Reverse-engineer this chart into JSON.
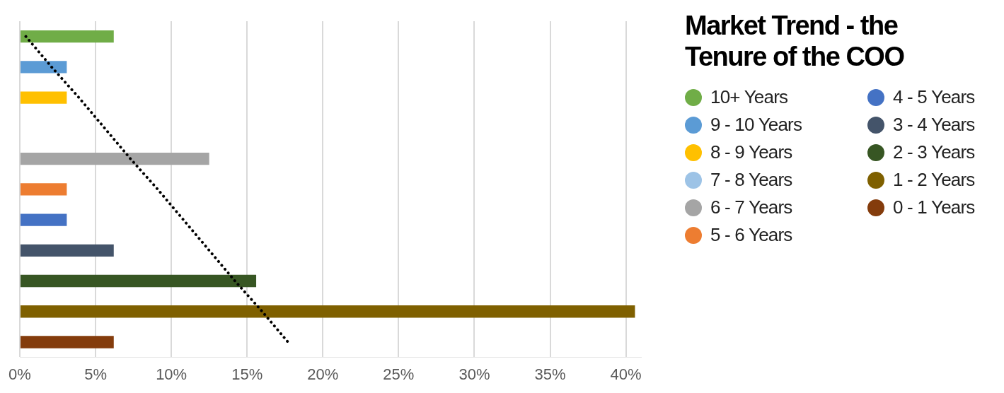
{
  "chart_data": {
    "type": "bar",
    "orientation": "horizontal",
    "title": "Market Trend - the Tenure of the COO",
    "categories": [
      null,
      null,
      null,
      null,
      null,
      null,
      null,
      null,
      null,
      null,
      null
    ],
    "series": [
      {
        "name": "10+ Years",
        "color": "#70ad47",
        "values": [
          6.2,
          null,
          null,
          null,
          null,
          null,
          null,
          null,
          null,
          null,
          null
        ]
      },
      {
        "name": "9 - 10 Years",
        "color": "#5b9bd5",
        "values": [
          null,
          3.1,
          null,
          null,
          null,
          null,
          null,
          null,
          null,
          null,
          null
        ]
      },
      {
        "name": "8 - 9 Years",
        "color": "#ffc000",
        "values": [
          null,
          null,
          3.1,
          null,
          null,
          null,
          null,
          null,
          null,
          null,
          null
        ]
      },
      {
        "name": "7 - 8 Years",
        "color": "#9dc3e6",
        "values": [
          null,
          null,
          null,
          0,
          null,
          null,
          null,
          null,
          null,
          null,
          null
        ]
      },
      {
        "name": "6 - 7 Years",
        "color": "#a5a5a5",
        "values": [
          null,
          null,
          null,
          null,
          12.5,
          null,
          null,
          null,
          null,
          null,
          null
        ]
      },
      {
        "name": "5 - 6 Years",
        "color": "#ed7d31",
        "values": [
          null,
          null,
          null,
          null,
          null,
          3.1,
          null,
          null,
          null,
          null,
          null
        ]
      },
      {
        "name": "4 - 5 Years",
        "color": "#4472c4",
        "values": [
          null,
          null,
          null,
          null,
          null,
          null,
          3.1,
          null,
          null,
          null,
          null
        ]
      },
      {
        "name": "3 - 4 Years",
        "color": "#44546a",
        "values": [
          null,
          null,
          null,
          null,
          null,
          null,
          null,
          6.2,
          null,
          null,
          null
        ]
      },
      {
        "name": "2 - 3 Years",
        "color": "#375623",
        "values": [
          null,
          null,
          null,
          null,
          null,
          null,
          null,
          null,
          15.6,
          null,
          null
        ]
      },
      {
        "name": "1 - 2 Years",
        "color": "#7f6000",
        "values": [
          null,
          null,
          null,
          null,
          null,
          null,
          null,
          null,
          null,
          40.6,
          null
        ]
      },
      {
        "name": "0 - 1 Years",
        "color": "#843c0c",
        "values": [
          null,
          null,
          null,
          null,
          null,
          null,
          null,
          null,
          null,
          null,
          6.2
        ]
      },
      {
        "type": "line",
        "color": "#000000",
        "line_style": "dotted",
        "marker": "none",
        "values": [
          0.4,
          2.1,
          3.9,
          5.6,
          7.3,
          9.1,
          10.8,
          12.5,
          14.2,
          16.0,
          17.7
        ]
      }
    ],
    "xlim": [
      0,
      41
    ],
    "xticks": [
      {
        "value": 0,
        "label": "0%"
      },
      {
        "value": 5,
        "label": "5%"
      },
      {
        "value": 10,
        "label": "10%"
      },
      {
        "value": 15,
        "label": "15%"
      },
      {
        "value": 20,
        "label": "20%"
      },
      {
        "value": 25,
        "label": "25%"
      },
      {
        "value": 30,
        "label": "30%"
      },
      {
        "value": 35,
        "label": "35%"
      },
      {
        "value": 40,
        "label": "40%"
      }
    ],
    "grid": "x",
    "legend": "right",
    "tick_labels": "x"
  }
}
